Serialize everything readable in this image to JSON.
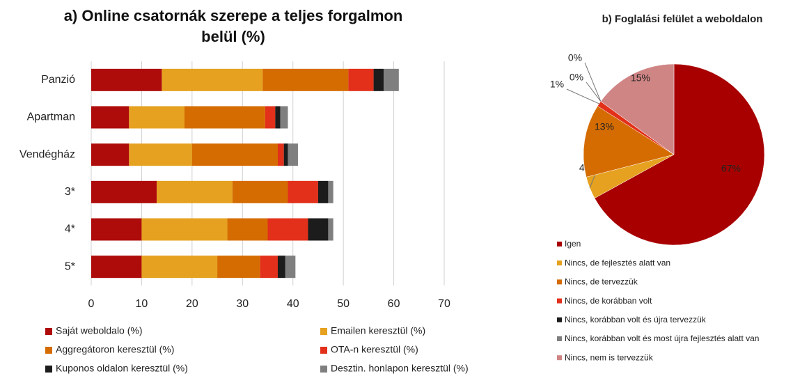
{
  "chart_data": [
    {
      "type": "stacked-bar-horizontal",
      "title": "a) Online csatornák szerepe  a teljes forgalmon belül (%)",
      "categories": [
        "Panzió",
        "Apartman",
        "Vendégház",
        "3*",
        "4*",
        "5*"
      ],
      "series": [
        {
          "name": "Saját weboldalo  (%)",
          "color": "#ae0b0b",
          "values": [
            14,
            7.5,
            7.5,
            13,
            10,
            10
          ]
        },
        {
          "name": "Emailen keresztül (%)",
          "color": "#e5a11f",
          "values": [
            20,
            11,
            12.5,
            15,
            17,
            15
          ]
        },
        {
          "name": "Aggregátoron keresztül (%)",
          "color": "#d56c02",
          "values": [
            17,
            16,
            17,
            11,
            8,
            8.5
          ]
        },
        {
          "name": "OTA-n keresztül (%)",
          "color": "#e2301a",
          "values": [
            5,
            2,
            1.2,
            6,
            8,
            3.5
          ]
        },
        {
          "name": "Kuponos oldalon keresztül (%)",
          "color": "#1c1c1c",
          "values": [
            2,
            1,
            0.8,
            2,
            4,
            1.5
          ]
        },
        {
          "name": "Desztin. honlapon keresztül (%)",
          "color": "#7f7f7f",
          "values": [
            3,
            1.5,
            2,
            1,
            1,
            2
          ]
        }
      ],
      "xlim": [
        0,
        70
      ],
      "xticks": [
        0,
        10,
        20,
        30,
        40,
        50,
        60,
        70
      ],
      "grid": true
    },
    {
      "type": "pie",
      "title": "b) Foglalási felület a weboldalon",
      "categories": [
        "Igen",
        "Nincs, de fejlesztés alatt van",
        "Nincs, de tervezzük",
        "Nincs, de korábban volt",
        "Nincs, korábban volt és újra tervezzük",
        "Nincs, korábban volt és most újra fejlesztés alatt van",
        "Nincs, nem is tervezzük"
      ],
      "values": [
        67,
        4,
        13,
        1,
        0,
        0,
        15
      ],
      "value_labels": [
        "67%",
        "4%",
        "13%",
        "1%",
        "0%",
        "0%",
        "15%"
      ],
      "colors": [
        "#a80000",
        "#e5a11f",
        "#d56c02",
        "#e2301a",
        "#1c1c1c",
        "#7f7f7f",
        "#d08585"
      ]
    }
  ]
}
